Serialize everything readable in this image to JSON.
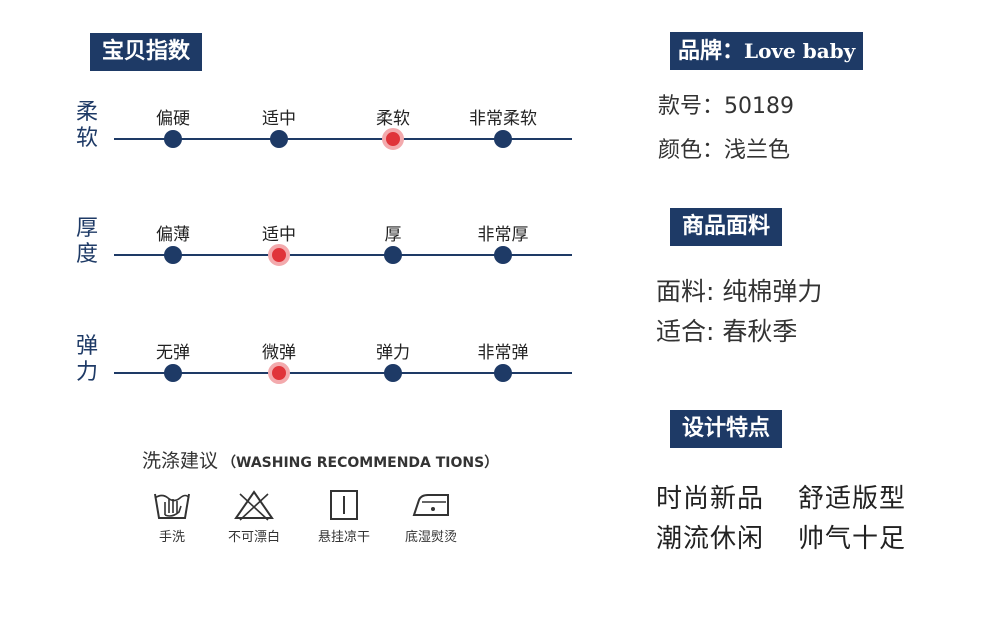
{
  "index": {
    "title": "宝贝指数",
    "rows": [
      {
        "label": "柔软",
        "stops": [
          "偏硬",
          "适中",
          "柔软",
          "非常柔软"
        ],
        "selected": 2
      },
      {
        "label": "厚度",
        "stops": [
          "偏薄",
          "适中",
          "厚",
          "非常厚"
        ],
        "selected": 1
      },
      {
        "label": "弹力",
        "stops": [
          "无弹",
          "微弹",
          "弹力",
          "非常弹"
        ],
        "selected": 1
      }
    ]
  },
  "wash": {
    "title": "洗涤建议",
    "subtitle": "（WASHING RECOMMENDA TIONS）",
    "items": [
      {
        "icon": "hand-wash-icon",
        "label": "手洗"
      },
      {
        "icon": "no-bleach-icon",
        "label": "不可漂白"
      },
      {
        "icon": "hang-dry-icon",
        "label": "悬挂凉干"
      },
      {
        "icon": "low-iron-icon",
        "label": "底湿熨烫"
      }
    ]
  },
  "brand": {
    "label": "品牌：",
    "name": "Love baby",
    "model_label": "款号：",
    "model": "50189",
    "color_label": "颜色：",
    "color": "浅兰色"
  },
  "fabric": {
    "title": "商品面料",
    "material_label": "面料:",
    "material": "纯棉弹力",
    "season_label": "适合:",
    "season": "春秋季"
  },
  "design": {
    "title": "设计特点",
    "features": [
      "时尚新品",
      "舒适版型",
      "潮流休闲",
      "帅气十足"
    ]
  },
  "colors": {
    "navy": "#1e3a66",
    "selected": "#e0343a"
  }
}
